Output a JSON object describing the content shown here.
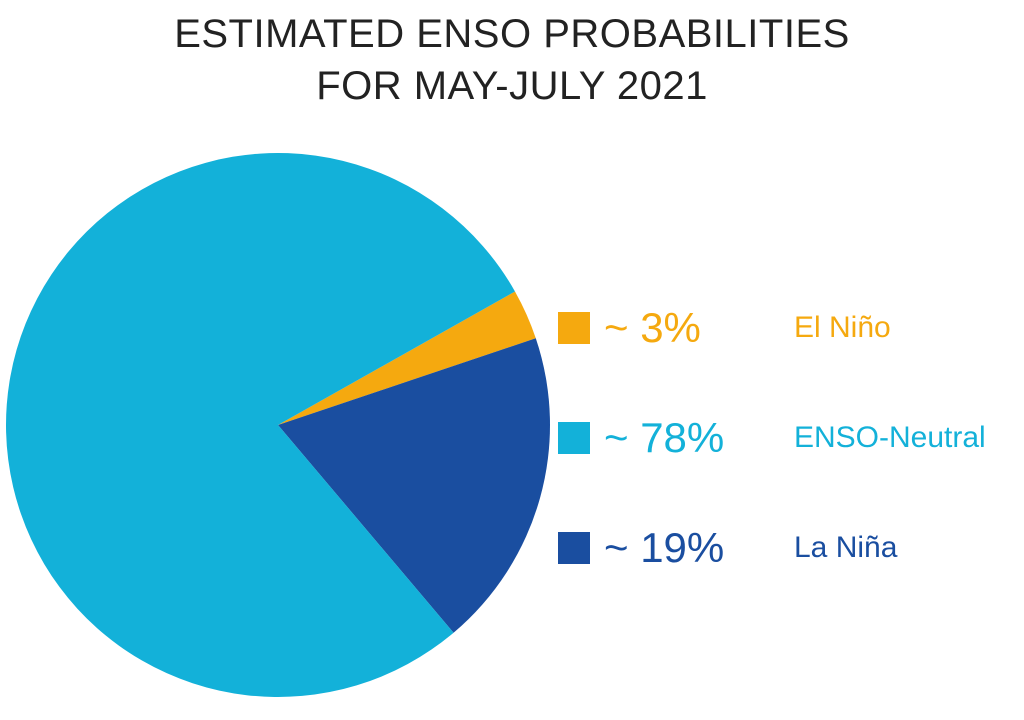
{
  "chart_data": {
    "type": "pie",
    "title_lines": [
      "ESTIMATED ENSO PROBABILITIES",
      "FOR MAY-JULY 2021"
    ],
    "slices": [
      {
        "label": "El Niño",
        "value": 3,
        "display": "~ 3%",
        "color": "#F5A90F"
      },
      {
        "label": "ENSO-Neutral",
        "value": 78,
        "display": "~ 78%",
        "color": "#13B1D9"
      },
      {
        "label": "La Niña",
        "value": 19,
        "display": "~ 19%",
        "color": "#1A4EA0"
      }
    ],
    "legend_position": "right"
  }
}
